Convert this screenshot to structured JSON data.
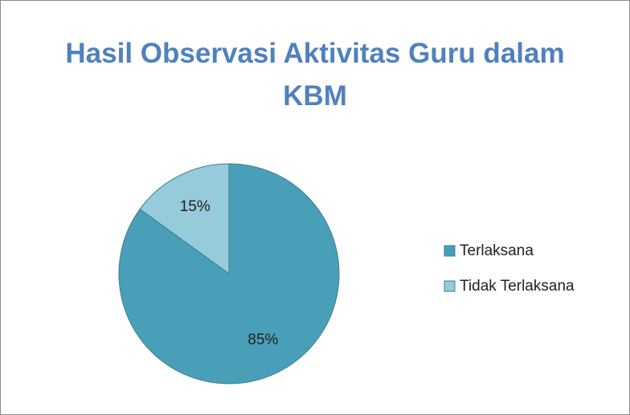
{
  "chart_data": {
    "type": "pie",
    "title": "Hasil Observasi Aktivitas Guru dalam KBM",
    "categories": [
      "Terlaksana",
      "Tidak Terlaksana"
    ],
    "values": [
      85,
      15
    ],
    "value_labels": [
      "85%",
      "15%"
    ],
    "colors": [
      "#4a9fb8",
      "#96cbdb"
    ],
    "legend": "right"
  }
}
